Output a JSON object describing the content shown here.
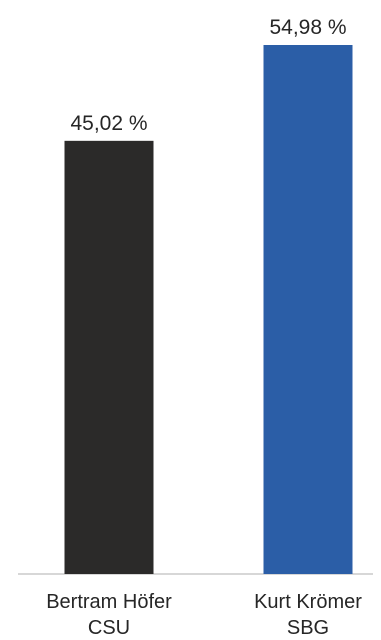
{
  "chart_data": {
    "type": "bar",
    "title": "",
    "xlabel": "",
    "ylabel": "",
    "ylim": [
      0,
      54.98
    ],
    "grid": false,
    "legend": "none",
    "categories": [
      {
        "name": "Bertram Höfer",
        "party": "CSU"
      },
      {
        "name": "Kurt Krömer",
        "party": "SBG"
      }
    ],
    "values": [
      45.02,
      54.98
    ],
    "value_labels": [
      "45,02 %",
      "54,98 %"
    ],
    "colors": [
      "#2b2a29",
      "#2b5ea7"
    ]
  }
}
